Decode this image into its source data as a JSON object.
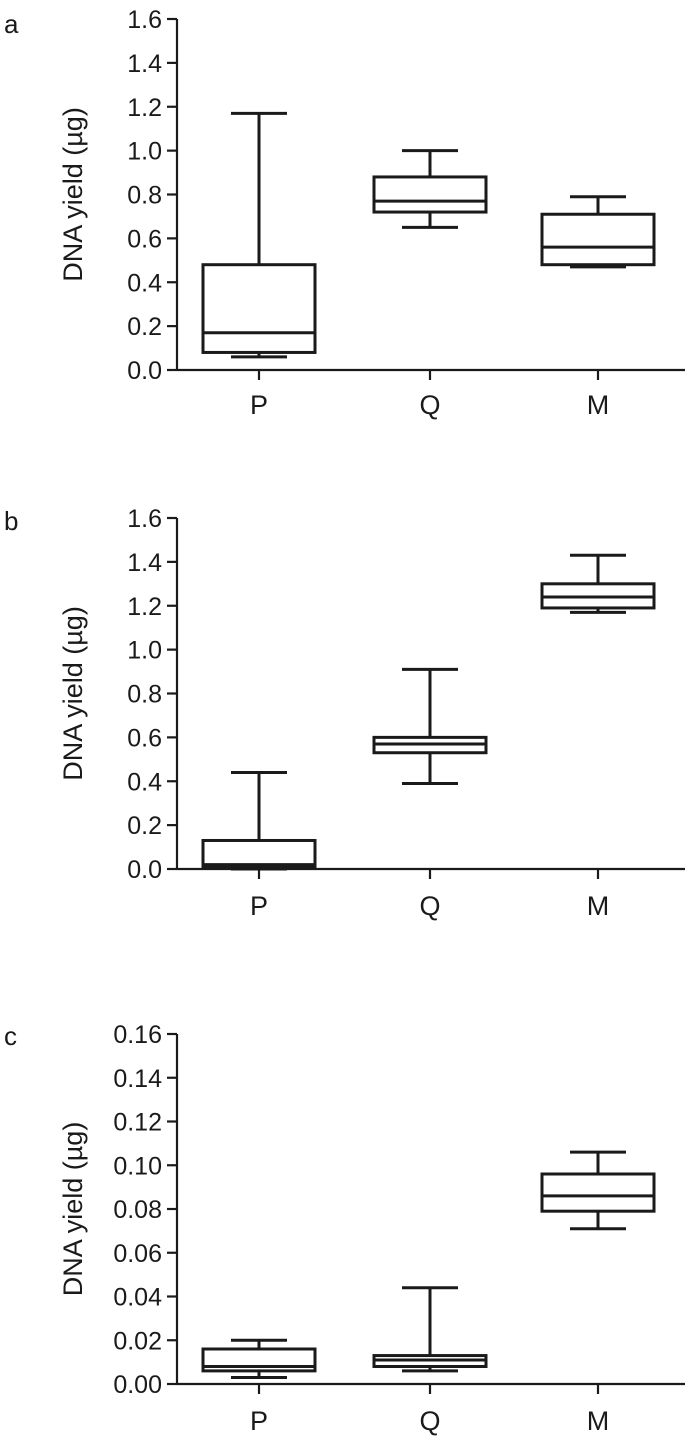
{
  "chart_data": [
    {
      "type": "box",
      "panel_label": "a",
      "ylabel": "DNA yield (µg)",
      "xlabel": "",
      "title": "",
      "categories": [
        "P",
        "Q",
        "M"
      ],
      "ylim": [
        0,
        1.6
      ],
      "yticks": [
        "0.0",
        "0.2",
        "0.4",
        "0.6",
        "0.8",
        "1.0",
        "1.2",
        "1.4",
        "1.6"
      ],
      "boxes": [
        {
          "category": "P",
          "min": 0.06,
          "q1": 0.08,
          "median": 0.17,
          "q3": 0.48,
          "max": 1.17
        },
        {
          "category": "Q",
          "min": 0.65,
          "q1": 0.72,
          "median": 0.77,
          "q3": 0.88,
          "max": 1.0
        },
        {
          "category": "M",
          "min": 0.47,
          "q1": 0.48,
          "median": 0.56,
          "q3": 0.71,
          "max": 0.79
        }
      ]
    },
    {
      "type": "box",
      "panel_label": "b",
      "ylabel": "DNA yield (µg)",
      "xlabel": "",
      "title": "",
      "categories": [
        "P",
        "Q",
        "M"
      ],
      "ylim": [
        0,
        1.6
      ],
      "yticks": [
        "0.0",
        "0.2",
        "0.4",
        "0.6",
        "0.8",
        "1.0",
        "1.2",
        "1.4",
        "1.6"
      ],
      "boxes": [
        {
          "category": "P",
          "min": 0.0,
          "q1": 0.01,
          "median": 0.02,
          "q3": 0.13,
          "max": 0.44
        },
        {
          "category": "Q",
          "min": 0.39,
          "q1": 0.53,
          "median": 0.57,
          "q3": 0.6,
          "max": 0.91
        },
        {
          "category": "M",
          "min": 1.17,
          "q1": 1.19,
          "median": 1.24,
          "q3": 1.3,
          "max": 1.43
        }
      ]
    },
    {
      "type": "box",
      "panel_label": "c",
      "ylabel": "DNA yield (µg)",
      "xlabel": "",
      "title": "",
      "categories": [
        "P",
        "Q",
        "M"
      ],
      "ylim": [
        0,
        0.16
      ],
      "yticks": [
        "0.00",
        "0.02",
        "0.04",
        "0.06",
        "0.08",
        "0.10",
        "0.12",
        "0.14",
        "0.16"
      ],
      "boxes": [
        {
          "category": "P",
          "min": 0.003,
          "q1": 0.006,
          "median": 0.008,
          "q3": 0.016,
          "max": 0.02
        },
        {
          "category": "Q",
          "min": 0.006,
          "q1": 0.008,
          "median": 0.011,
          "q3": 0.013,
          "max": 0.044
        },
        {
          "category": "M",
          "min": 0.071,
          "q1": 0.079,
          "median": 0.086,
          "q3": 0.096,
          "max": 0.106
        }
      ]
    }
  ]
}
